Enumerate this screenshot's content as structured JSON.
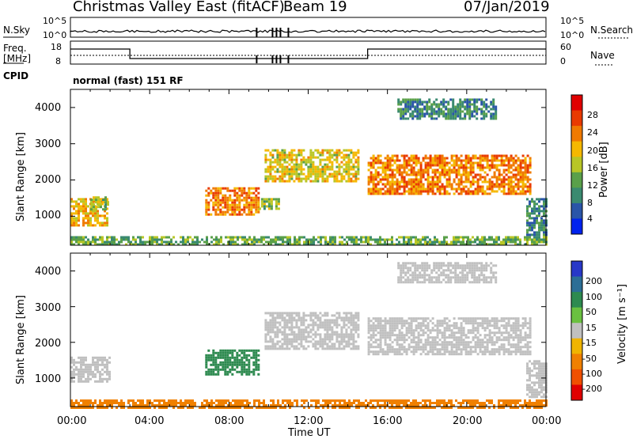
{
  "header": {
    "station": "Christmas Valley East (fitACF)",
    "beam": "Beam 19",
    "date": "07/Jan/2019"
  },
  "summary_panel": {
    "nsky_label": "N.Sky",
    "nsearch_label": "N.Search",
    "freq_label_1": "Freq.",
    "freq_label_2": "[MHz]",
    "nave_label": "Nave",
    "cpid_label": "CPID",
    "cpid_text": "normal (fast) 151 RF",
    "noise_left_ticks": [
      "10^5",
      "10^0"
    ],
    "noise_right_ticks": [
      "10^5",
      "10^0"
    ],
    "freq_ticks": [
      "18",
      "8"
    ],
    "nave_ticks": [
      "60",
      "0"
    ]
  },
  "colors": {
    "power_scale": [
      "#0022ee",
      "#2a55a8",
      "#3a8a70",
      "#5aa04a",
      "#b8c626",
      "#f5b800",
      "#f07a00",
      "#e93a00",
      "#e00000"
    ],
    "velocity_scale": [
      "#2838c8",
      "#2c6e96",
      "#2e8a50",
      "#6ac040",
      "#c0c0c0",
      "#f0b400",
      "#f08000",
      "#f05000",
      "#e00000"
    ]
  },
  "chart_data": [
    {
      "type": "heatmap",
      "name": "power",
      "ylabel": "Slant Range [km]",
      "y_ticks": [
        "4000",
        "3000",
        "2000",
        "1000"
      ],
      "ylim": [
        200,
        4500
      ],
      "xlim": [
        0,
        24
      ],
      "colorbar_label": "Power [dB]",
      "colorbar_ticks": [
        "28",
        "24",
        "20",
        "16",
        "12",
        "8",
        "4"
      ],
      "colorbar_range": [
        0,
        32
      ],
      "echo_regions": [
        {
          "t": [
            0.0,
            1.8
          ],
          "r": [
            750,
            1500
          ],
          "value": 20
        },
        {
          "t": [
            1.0,
            1.9
          ],
          "r": [
            1200,
            1550
          ],
          "value": 14
        },
        {
          "t": [
            6.8,
            9.5
          ],
          "r": [
            1050,
            1800
          ],
          "value": 24
        },
        {
          "t": [
            9.5,
            10.5
          ],
          "r": [
            1200,
            1500
          ],
          "value": 14
        },
        {
          "t": [
            9.8,
            14.5
          ],
          "r": [
            1950,
            2850
          ],
          "value": 18
        },
        {
          "t": [
            15.0,
            23.2
          ],
          "r": [
            1650,
            2700
          ],
          "value": 24
        },
        {
          "t": [
            16.5,
            21.5
          ],
          "r": [
            3700,
            4250
          ],
          "value": 8
        },
        {
          "t": [
            23.0,
            24.0
          ],
          "r": [
            500,
            1500
          ],
          "value": 8
        },
        {
          "t": [
            0.0,
            24.0
          ],
          "r": [
            200,
            450
          ],
          "value": 12
        }
      ]
    },
    {
      "type": "heatmap",
      "name": "velocity",
      "ylabel": "Slant Range [km]",
      "xlabel": "Time UT",
      "x_ticks": [
        "00:00",
        "04:00",
        "08:00",
        "12:00",
        "16:00",
        "20:00",
        "00:00"
      ],
      "y_ticks": [
        "4000",
        "3000",
        "2000",
        "1000"
      ],
      "ylim": [
        200,
        4500
      ],
      "xlim": [
        0,
        24
      ],
      "colorbar_label": "Velocity [m s⁻¹]",
      "colorbar_ticks": [
        "200",
        "100",
        "50",
        "15",
        "-15",
        "-50",
        "-100",
        "-200"
      ],
      "echo_regions": [
        {
          "t": [
            0.0,
            2.0
          ],
          "r": [
            900,
            1600
          ],
          "value": 0
        },
        {
          "t": [
            6.8,
            9.5
          ],
          "r": [
            1100,
            1800
          ],
          "value": 80
        },
        {
          "t": [
            9.8,
            14.5
          ],
          "r": [
            1850,
            2850
          ],
          "value": 0
        },
        {
          "t": [
            15.0,
            23.2
          ],
          "r": [
            1650,
            2700
          ],
          "value": 0
        },
        {
          "t": [
            16.5,
            21.5
          ],
          "r": [
            3700,
            4250
          ],
          "value": 0
        },
        {
          "t": [
            23.0,
            24.0
          ],
          "r": [
            500,
            1500
          ],
          "value": 0
        },
        {
          "t": [
            0.0,
            24.0
          ],
          "r": [
            200,
            400
          ],
          "value": -60
        }
      ]
    }
  ]
}
